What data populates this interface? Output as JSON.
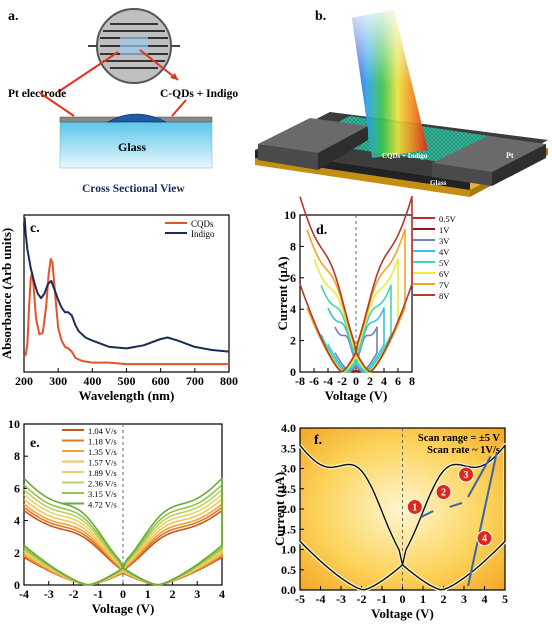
{
  "panels": {
    "a": {
      "label": "a.",
      "pt_label": "Pt electrode",
      "cqd_label": "C-QDs + Indigo",
      "glass_label": "Glass",
      "caption": "Cross Sectional View"
    },
    "b": {
      "label": "b.",
      "pt_left": "Pt",
      "pt_right": "Pt",
      "film": "CQDs + Indigo",
      "glass": "Glass"
    },
    "f_notes": [
      "Scan range = ±5 V",
      "Scan rate ~ 1V/s"
    ],
    "f_steps": [
      "1",
      "2",
      "3",
      "4"
    ]
  },
  "colors": {
    "cqd": "#e2532a",
    "indigo": "#1c2a5a",
    "glass": "#9fdcf0",
    "film": "#1f8f7a",
    "badge": "#d92a1c"
  },
  "chart_data": [
    {
      "id": "c",
      "label": "c.",
      "type": "line",
      "xlabel": "Wavelength (nm)",
      "ylabel": "Absorbance (Arb units)",
      "xlim": [
        200,
        800
      ],
      "ylim": [
        0,
        1
      ],
      "xticks": [
        200,
        300,
        400,
        500,
        600,
        700,
        800
      ],
      "yticks": [],
      "legend": "top-right",
      "series": [
        {
          "name": "CQDs",
          "color": "#e2532a",
          "points": [
            [
              200,
              0.1
            ],
            [
              205,
              0.11
            ],
            [
              210,
              0.18
            ],
            [
              215,
              0.42
            ],
            [
              220,
              0.6
            ],
            [
              224,
              0.63
            ],
            [
              228,
              0.55
            ],
            [
              235,
              0.34
            ],
            [
              245,
              0.24
            ],
            [
              255,
              0.25
            ],
            [
              265,
              0.42
            ],
            [
              272,
              0.62
            ],
            [
              278,
              0.72
            ],
            [
              283,
              0.7
            ],
            [
              290,
              0.52
            ],
            [
              300,
              0.28
            ],
            [
              310,
              0.2
            ],
            [
              320,
              0.16
            ],
            [
              330,
              0.15
            ],
            [
              340,
              0.13
            ],
            [
              350,
              0.09
            ],
            [
              370,
              0.07
            ],
            [
              400,
              0.06
            ],
            [
              450,
              0.06
            ],
            [
              500,
              0.05
            ],
            [
              600,
              0.05
            ],
            [
              700,
              0.05
            ],
            [
              800,
              0.05
            ]
          ]
        },
        {
          "name": "Indigo",
          "color": "#1c2a5a",
          "points": [
            [
              200,
              0.93
            ],
            [
              202,
              0.98
            ],
            [
              205,
              0.88
            ],
            [
              210,
              0.78
            ],
            [
              220,
              0.66
            ],
            [
              230,
              0.57
            ],
            [
              240,
              0.5
            ],
            [
              250,
              0.47
            ],
            [
              260,
              0.5
            ],
            [
              270,
              0.56
            ],
            [
              280,
              0.58
            ],
            [
              290,
              0.52
            ],
            [
              300,
              0.46
            ],
            [
              310,
              0.41
            ],
            [
              320,
              0.38
            ],
            [
              330,
              0.38
            ],
            [
              340,
              0.36
            ],
            [
              350,
              0.3
            ],
            [
              360,
              0.26
            ],
            [
              380,
              0.22
            ],
            [
              400,
              0.2
            ],
            [
              450,
              0.16
            ],
            [
              500,
              0.15
            ],
            [
              550,
              0.17
            ],
            [
              600,
              0.21
            ],
            [
              620,
              0.22
            ],
            [
              650,
              0.2
            ],
            [
              700,
              0.16
            ],
            [
              750,
              0.14
            ],
            [
              800,
              0.13
            ]
          ]
        }
      ]
    },
    {
      "id": "d",
      "label": "d.",
      "type": "line",
      "xlabel": "Voltage (V)",
      "ylabel": "Current (µA)",
      "xlim": [
        -8,
        8
      ],
      "ylim": [
        0,
        10
      ],
      "xticks": [
        -8,
        -6,
        -4,
        -2,
        0,
        2,
        4,
        6,
        8
      ],
      "yticks": [
        0,
        2,
        4,
        6,
        8,
        10
      ],
      "legend": "top-right",
      "series": [
        {
          "name": "0.5V",
          "vmax": 0.5,
          "color": "#c0302b"
        },
        {
          "name": "1V",
          "vmax": 1,
          "color": "#8b1a14"
        },
        {
          "name": "3V",
          "vmax": 3,
          "color": "#6f84b0"
        },
        {
          "name": "4V",
          "vmax": 4,
          "color": "#3fbfe0"
        },
        {
          "name": "5V",
          "vmax": 5,
          "color": "#44d6a8"
        },
        {
          "name": "6V",
          "vmax": 6,
          "color": "#e6ec3a"
        },
        {
          "name": "7V",
          "vmax": 7,
          "color": "#f2a42a"
        },
        {
          "name": "8V",
          "vmax": 8,
          "color": "#b23a2a"
        }
      ]
    },
    {
      "id": "e",
      "label": "e.",
      "type": "line",
      "xlabel": "Voltage (V)",
      "ylabel": "",
      "xlim": [
        -4,
        4
      ],
      "ylim": [
        0,
        10
      ],
      "xticks": [
        -4,
        -3,
        -2,
        -1,
        0,
        1,
        2,
        3,
        4
      ],
      "yticks": [
        0,
        2,
        4,
        6,
        8,
        10
      ],
      "legend": "top-left",
      "series": [
        {
          "name": "1.04 V/s",
          "imax": 4.6,
          "color": "#c8541c"
        },
        {
          "name": "1.18 V/s",
          "imax": 4.8,
          "color": "#e07a22"
        },
        {
          "name": "1.35 V/s",
          "imax": 5.0,
          "color": "#eda23a"
        },
        {
          "name": "1.57 V/s",
          "imax": 5.3,
          "color": "#f2c35a"
        },
        {
          "name": "1.89 V/s",
          "imax": 5.6,
          "color": "#e4d46a"
        },
        {
          "name": "2.36 V/s",
          "imax": 5.9,
          "color": "#bfd05a"
        },
        {
          "name": "3.15 V/s",
          "imax": 6.2,
          "color": "#95c24a"
        },
        {
          "name": "4.72 V/s",
          "imax": 6.6,
          "color": "#6aaa36"
        }
      ]
    },
    {
      "id": "f",
      "label": "f.",
      "type": "line",
      "xlabel": "Voltage (V)",
      "ylabel": "Current (µA)",
      "xlim": [
        -5,
        5
      ],
      "ylim": [
        0,
        4
      ],
      "xticks": [
        -5,
        -4,
        -3,
        -2,
        -1,
        0,
        1,
        2,
        3,
        4,
        5
      ],
      "yticks": [
        0.0,
        0.5,
        1.0,
        1.5,
        2.0,
        2.5,
        3.0,
        3.5,
        4.0
      ],
      "grid": false
    }
  ]
}
